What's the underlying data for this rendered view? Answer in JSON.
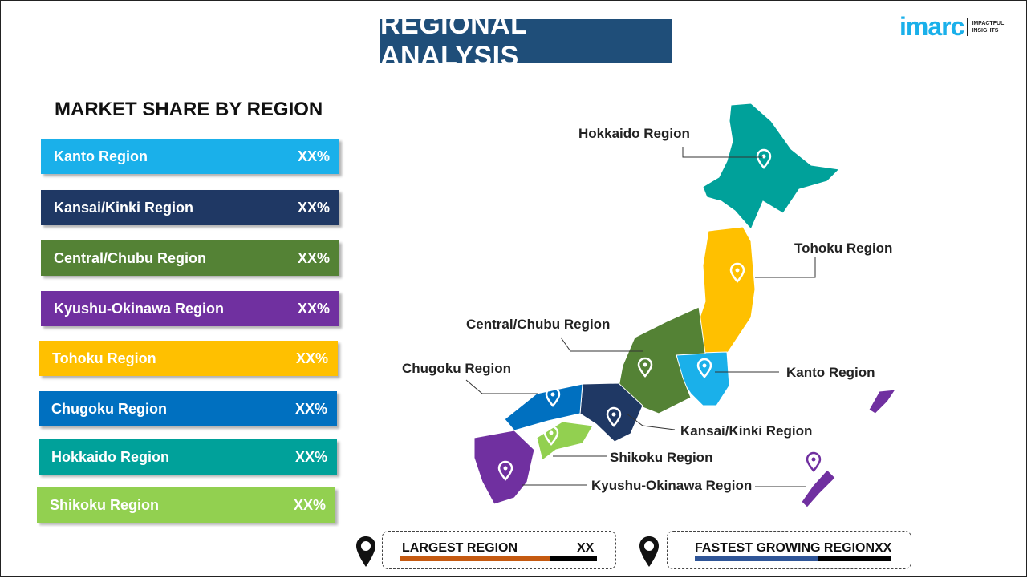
{
  "header": {
    "title": "REGIONAL ANALYSIS",
    "logo_word": "imarc",
    "logo_tag_1": "IMPACTFUL",
    "logo_tag_2": "INSIGHTS"
  },
  "subtitle": "MARKET SHARE BY REGION",
  "regions": [
    {
      "label": "Kanto Region",
      "value": "XX%",
      "color": "#1ab0ea"
    },
    {
      "label": "Kansai/Kinki  Region",
      "value": "XX%",
      "color": "#1f3864"
    },
    {
      "label": "Central/Chubu  Region",
      "value": "XX%",
      "color": "#548235"
    },
    {
      "label": "Kyushu-Okinawa  Region",
      "value": "XX%",
      "color": "#7030a0"
    },
    {
      "label": "Tohoku  Region",
      "value": "XX%",
      "color": "#ffc000"
    },
    {
      "label": "Chugoku  Region",
      "value": "XX%",
      "color": "#0070c0"
    },
    {
      "label": "Hokkaido  Region",
      "value": "XX%",
      "color": "#00a19a"
    },
    {
      "label": "Shikoku  Region",
      "value": "XX%",
      "color": "#92d050"
    }
  ],
  "map_labels": {
    "hokkaido": "Hokkaido Region",
    "tohoku": "Tohoku Region",
    "central": "Central/Chubu Region",
    "chugoku": "Chugoku Region",
    "kanto": "Kanto Region",
    "kansai": "Kansai/Kinki Region",
    "shikoku": "Shikoku Region",
    "kyushu": "Kyushu-Okinawa Region"
  },
  "footer": {
    "largest": {
      "label": "LARGEST REGION",
      "value": "XX",
      "progress": 0.76,
      "color": "#c55a11"
    },
    "fastest": {
      "label": "FASTEST GROWING REGION",
      "value": "XX",
      "progress": 0.63,
      "color": "#2f5597"
    }
  }
}
